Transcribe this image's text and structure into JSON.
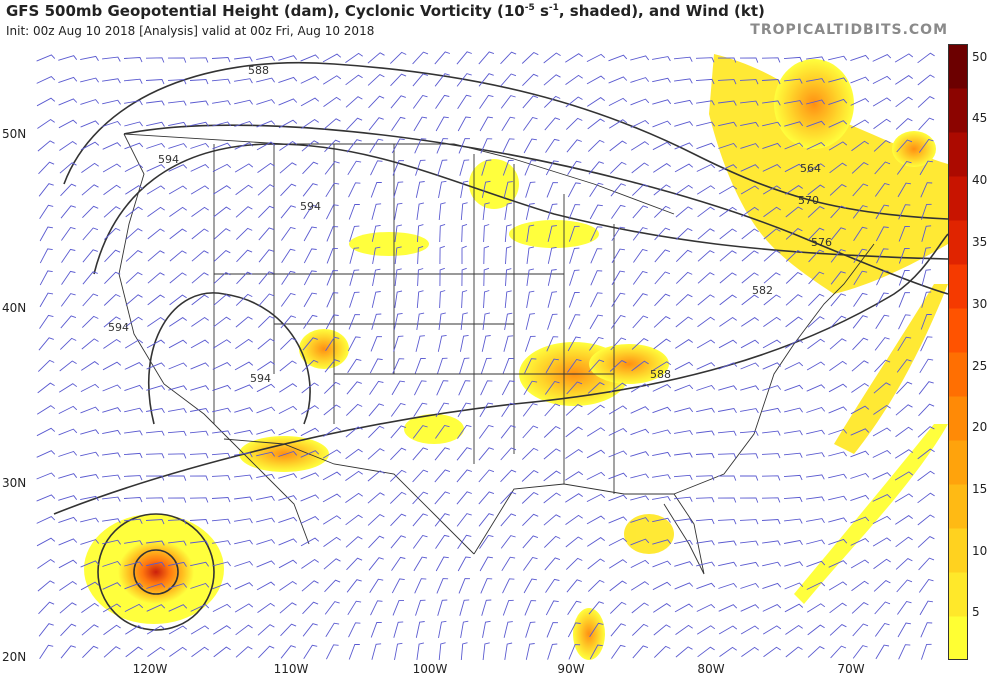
{
  "header": {
    "title_main": "GFS 500mb Geopotential Height (dam), Cyclonic Vorticity (10",
    "title_sup": "-5",
    "title_tail": " s",
    "title_sup2": "-1",
    "title_end": ", shaded), and Wind (kt)",
    "subtitle": "Init: 00z Aug 10 2018   [Analysis]   valid at 00z Fri, Aug 10 2018",
    "brand": "TROPICALTIDBITS.COM"
  },
  "axes": {
    "lat_labels": [
      "50N",
      "40N",
      "30N",
      "20N"
    ],
    "lon_labels": [
      "120W",
      "110W",
      "100W",
      "90W",
      "80W",
      "70W"
    ]
  },
  "contours": {
    "labels": [
      "588",
      "594",
      "594",
      "594",
      "594",
      "564",
      "570",
      "576",
      "582",
      "588"
    ]
  },
  "colorbar": {
    "labels": [
      "50",
      "45",
      "40",
      "35",
      "30",
      "25",
      "20",
      "15",
      "10",
      "5"
    ],
    "min": 3,
    "max": 51,
    "colors": [
      "#ffff33",
      "#ffe82a",
      "#ffd21f",
      "#ffba14",
      "#ffa30c",
      "#ff8a06",
      "#ff6f02",
      "#ff5300",
      "#f53a00",
      "#e02400",
      "#c81400",
      "#ac0a00",
      "#8c0400",
      "#6c0000"
    ]
  }
}
